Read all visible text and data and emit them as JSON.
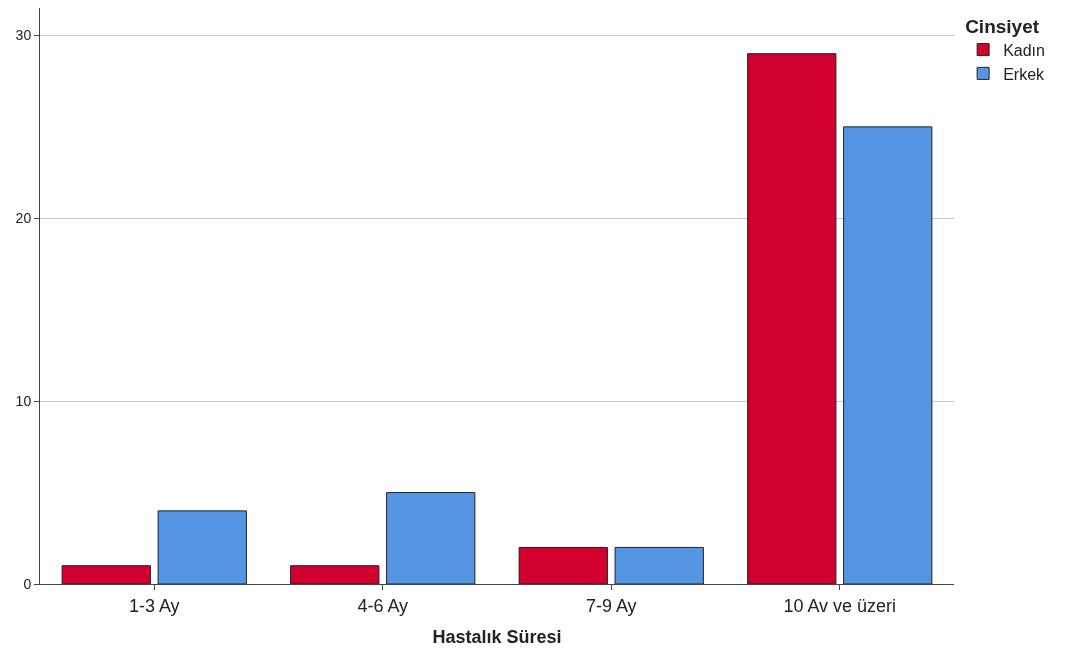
{
  "chart_data": {
    "type": "bar",
    "xlabel": "Hastalık Süresi",
    "legend_title": "Cinsiyet",
    "categories": [
      "1-3 Ay",
      "4-6 Ay",
      "7-9 Ay",
      "10 Av ve üzeri"
    ],
    "series": [
      {
        "name": "Kadın",
        "color": "#d2002d",
        "values": [
          1,
          1,
          2,
          29
        ]
      },
      {
        "name": "Erkek",
        "color": "#5496e4",
        "values": [
          4,
          5,
          2,
          25
        ]
      }
    ],
    "ylim": [
      0,
      31.5
    ],
    "yticks": [
      0,
      10,
      20,
      30
    ],
    "grid": "y",
    "legend": "top right"
  }
}
